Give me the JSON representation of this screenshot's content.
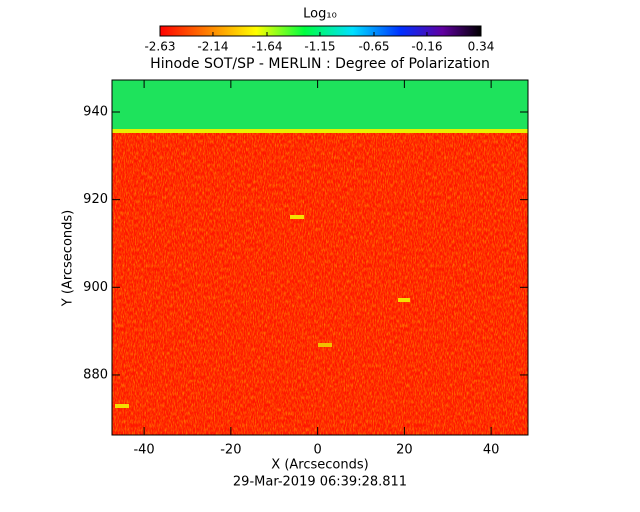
{
  "chart_data": {
    "type": "image",
    "title": "Hinode SOT/SP - MERLIN : Degree of Polarization",
    "xlabel": "X (Arcseconds)",
    "ylabel": "Y (Arcseconds)",
    "footer": "29-Mar-2019 06:39:28.811",
    "colorbar_label": "Log₁₀",
    "clim": [
      -2.63,
      0.34
    ],
    "cticks": [
      -2.63,
      -2.14,
      -1.64,
      -1.15,
      -0.65,
      -0.16,
      0.34
    ],
    "xlim": [
      -47.4,
      48.5
    ],
    "xticks": [
      -40,
      -20,
      0,
      20,
      40
    ],
    "ylim": [
      866.3,
      947.3
    ],
    "yticks": [
      880,
      900,
      920,
      940
    ]
  }
}
